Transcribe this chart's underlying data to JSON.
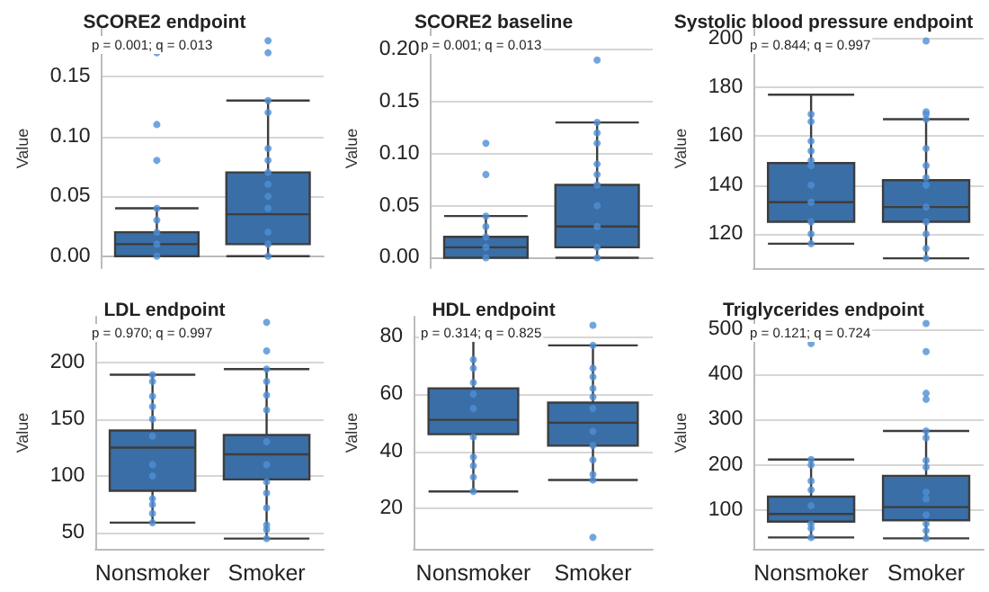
{
  "chart_data": [
    {
      "type": "box",
      "title": "SCORE2 endpoint",
      "ylabel": "Value",
      "categories": [
        "Nonsmoker",
        "Smoker"
      ],
      "ylim": [
        -0.01,
        0.19
      ],
      "yticks": [
        {
          "value": 0,
          "label": "0.00"
        },
        {
          "value": 0.05,
          "label": "0.05"
        },
        {
          "value": 0.1,
          "label": "0.10"
        },
        {
          "value": 0.15,
          "label": "0.15"
        }
      ],
      "grid": "y",
      "tick_labels": "y",
      "annotations": [
        "p = 0.001; q = 0.013"
      ],
      "series": [
        {
          "type": "box",
          "color": "#3a6ea6",
          "boxes": [
            {
              "low": 0,
              "q1": 0,
              "median": 0.01,
              "q3": 0.02,
              "high": 0.04,
              "outliers": [
                0.08,
                0.11,
                0.17
              ]
            },
            {
              "low": 0,
              "q1": 0.01,
              "median": 0.035,
              "q3": 0.07,
              "high": 0.13,
              "outliers": [
                0.17,
                0.18
              ]
            }
          ]
        },
        {
          "type": "scatter",
          "color": "#4f8fd6",
          "x": [
            "Nonsmoker",
            "Nonsmoker",
            "Nonsmoker",
            "Nonsmoker",
            "Nonsmoker",
            "Smoker",
            "Smoker",
            "Smoker",
            "Smoker",
            "Smoker",
            "Smoker",
            "Smoker",
            "Smoker",
            "Smoker",
            "Smoker",
            "Smoker"
          ],
          "values": [
            0,
            0.01,
            0.02,
            0.03,
            0.04,
            0,
            0.01,
            0.02,
            0.04,
            0.05,
            0.06,
            0.07,
            0.08,
            0.09,
            0.12,
            0.13
          ]
        }
      ]
    },
    {
      "type": "box",
      "title": "SCORE2 baseline",
      "ylabel": "Value",
      "categories": [
        "Nonsmoker",
        "Smoker"
      ],
      "ylim": [
        -0.01,
        0.22
      ],
      "yticks": [
        {
          "value": 0,
          "label": "0.00"
        },
        {
          "value": 0.05,
          "label": "0.05"
        },
        {
          "value": 0.1,
          "label": "0.10"
        },
        {
          "value": 0.15,
          "label": "0.15"
        },
        {
          "value": 0.2,
          "label": "0.20"
        }
      ],
      "grid": "y",
      "tick_labels": "y",
      "annotations": [
        "p = 0.001; q = 0.013"
      ],
      "series": [
        {
          "type": "box",
          "color": "#3a6ea6",
          "boxes": [
            {
              "low": 0,
              "q1": 0,
              "median": 0.01,
              "q3": 0.02,
              "high": 0.04,
              "outliers": [
                0.08,
                0.11
              ]
            },
            {
              "low": 0,
              "q1": 0.01,
              "median": 0.03,
              "q3": 0.07,
              "high": 0.13,
              "outliers": [
                0.19
              ]
            }
          ]
        },
        {
          "type": "scatter",
          "color": "#4f8fd6",
          "x": [
            "Nonsmoker",
            "Nonsmoker",
            "Nonsmoker",
            "Nonsmoker",
            "Nonsmoker",
            "Smoker",
            "Smoker",
            "Smoker",
            "Smoker",
            "Smoker",
            "Smoker",
            "Smoker",
            "Smoker",
            "Smoker",
            "Smoker"
          ],
          "values": [
            0,
            0.01,
            0.02,
            0.03,
            0.04,
            0,
            0.01,
            0.03,
            0.05,
            0.07,
            0.08,
            0.09,
            0.11,
            0.12,
            0.13
          ]
        }
      ]
    },
    {
      "type": "box",
      "title": "Systolic blood pressure endpoint",
      "ylabel": "Value",
      "categories": [
        "Nonsmoker",
        "Smoker"
      ],
      "ylim": [
        106,
        204
      ],
      "yticks": [
        120,
        140,
        160,
        180,
        200
      ],
      "grid": "y",
      "tick_labels": "y",
      "annotations": [
        "p = 0.844; q = 0.997"
      ],
      "series": [
        {
          "type": "box",
          "color": "#3a6ea6",
          "boxes": [
            {
              "low": 116,
              "q1": 125,
              "median": 133,
              "q3": 149,
              "high": 177
            },
            {
              "low": 110,
              "q1": 125,
              "median": 131,
              "q3": 142,
              "high": 167,
              "outliers": [
                169,
                170,
                199
              ]
            }
          ]
        },
        {
          "type": "scatter",
          "color": "#4f8fd6",
          "x": [
            "Nonsmoker",
            "Nonsmoker",
            "Nonsmoker",
            "Nonsmoker",
            "Nonsmoker",
            "Nonsmoker",
            "Nonsmoker",
            "Nonsmoker",
            "Nonsmoker",
            "Nonsmoker",
            "Nonsmoker",
            "Smoker",
            "Smoker",
            "Smoker",
            "Smoker",
            "Smoker",
            "Smoker",
            "Smoker",
            "Smoker",
            "Smoker",
            "Smoker"
          ],
          "values": [
            116,
            120,
            125,
            133,
            140,
            148,
            150,
            154,
            158,
            166,
            169,
            110,
            114,
            120,
            125,
            131,
            140,
            143,
            148,
            155,
            167
          ]
        }
      ]
    },
    {
      "type": "box",
      "title": "LDL endpoint",
      "ylabel": "Value",
      "categories": [
        "Nonsmoker",
        "Smoker"
      ],
      "ylim": [
        36,
        240
      ],
      "yticks": [
        50,
        100,
        150,
        200
      ],
      "grid": "y",
      "annotations": [
        "p = 0.970; q = 0.997"
      ],
      "series": [
        {
          "type": "box",
          "color": "#3a6ea6",
          "boxes": [
            {
              "low": 59,
              "q1": 87,
              "median": 125,
              "q3": 140,
              "high": 189
            },
            {
              "low": 45,
              "q1": 97,
              "median": 119,
              "q3": 136,
              "high": 194,
              "outliers": [
                210,
                235
              ]
            }
          ]
        },
        {
          "type": "scatter",
          "color": "#4f8fd6",
          "x": [
            "Nonsmoker",
            "Nonsmoker",
            "Nonsmoker",
            "Nonsmoker",
            "Nonsmoker",
            "Nonsmoker",
            "Nonsmoker",
            "Nonsmoker",
            "Nonsmoker",
            "Nonsmoker",
            "Nonsmoker",
            "Nonsmoker",
            "Smoker",
            "Smoker",
            "Smoker",
            "Smoker",
            "Smoker",
            "Smoker",
            "Smoker",
            "Smoker",
            "Smoker",
            "Smoker",
            "Smoker",
            "Smoker"
          ],
          "values": [
            59,
            67,
            75,
            80,
            100,
            110,
            135,
            150,
            161,
            170,
            183,
            189,
            45,
            53,
            57,
            72,
            85,
            95,
            110,
            130,
            158,
            171,
            183,
            194
          ]
        }
      ]
    },
    {
      "type": "box",
      "title": "HDL endpoint",
      "ylabel": "Value",
      "categories": [
        "Nonsmoker",
        "Smoker"
      ],
      "ylim": [
        6,
        87
      ],
      "yticks": [
        20,
        40,
        60,
        80
      ],
      "grid": "y",
      "annotations": [
        "p = 0.314; q = 0.825"
      ],
      "series": [
        {
          "type": "box",
          "color": "#3a6ea6",
          "boxes": [
            {
              "low": 26,
              "q1": 46,
              "median": 51,
              "q3": 62,
              "high": 81
            },
            {
              "low": 30,
              "q1": 42,
              "median": 50,
              "q3": 57,
              "high": 77,
              "outliers": [
                10,
                84
              ]
            }
          ]
        },
        {
          "type": "scatter",
          "color": "#4f8fd6",
          "x": [
            "Nonsmoker",
            "Nonsmoker",
            "Nonsmoker",
            "Nonsmoker",
            "Nonsmoker",
            "Nonsmoker",
            "Nonsmoker",
            "Nonsmoker",
            "Nonsmoker",
            "Nonsmoker",
            "Smoker",
            "Smoker",
            "Smoker",
            "Smoker",
            "Smoker",
            "Smoker",
            "Smoker",
            "Smoker",
            "Smoker",
            "Smoker",
            "Smoker"
          ],
          "values": [
            26,
            31,
            35,
            38,
            45,
            55,
            60,
            64,
            69,
            72,
            30,
            32,
            37,
            42,
            47,
            55,
            59,
            62,
            66,
            69,
            77
          ]
        }
      ]
    },
    {
      "type": "box",
      "title": "Triglycerides endpoint",
      "ylabel": "Value",
      "categories": [
        "Nonsmoker",
        "Smoker"
      ],
      "ylim": [
        15,
        527
      ],
      "yticks": [
        100,
        200,
        300,
        400,
        500
      ],
      "grid": "y",
      "annotations": [
        "p = 0.121; q = 0.724"
      ],
      "series": [
        {
          "type": "box",
          "color": "#3a6ea6",
          "boxes": [
            {
              "low": 40,
              "q1": 75,
              "median": 92,
              "q3": 130,
              "high": 212,
              "outliers": [
                468
              ]
            },
            {
              "low": 38,
              "q1": 78,
              "median": 107,
              "q3": 176,
              "high": 275,
              "outliers": [
                345,
                358,
                450,
                512
              ]
            }
          ]
        },
        {
          "type": "scatter",
          "color": "#4f8fd6",
          "x": [
            "Nonsmoker",
            "Nonsmoker",
            "Nonsmoker",
            "Nonsmoker",
            "Nonsmoker",
            "Nonsmoker",
            "Nonsmoker",
            "Nonsmoker",
            "Smoker",
            "Smoker",
            "Smoker",
            "Smoker",
            "Smoker",
            "Smoker",
            "Smoker",
            "Smoker",
            "Smoker",
            "Smoker"
          ],
          "values": [
            40,
            70,
            110,
            145,
            165,
            200,
            212,
            60,
            38,
            55,
            70,
            90,
            140,
            195,
            210,
            260,
            275,
            125
          ]
        }
      ]
    }
  ]
}
